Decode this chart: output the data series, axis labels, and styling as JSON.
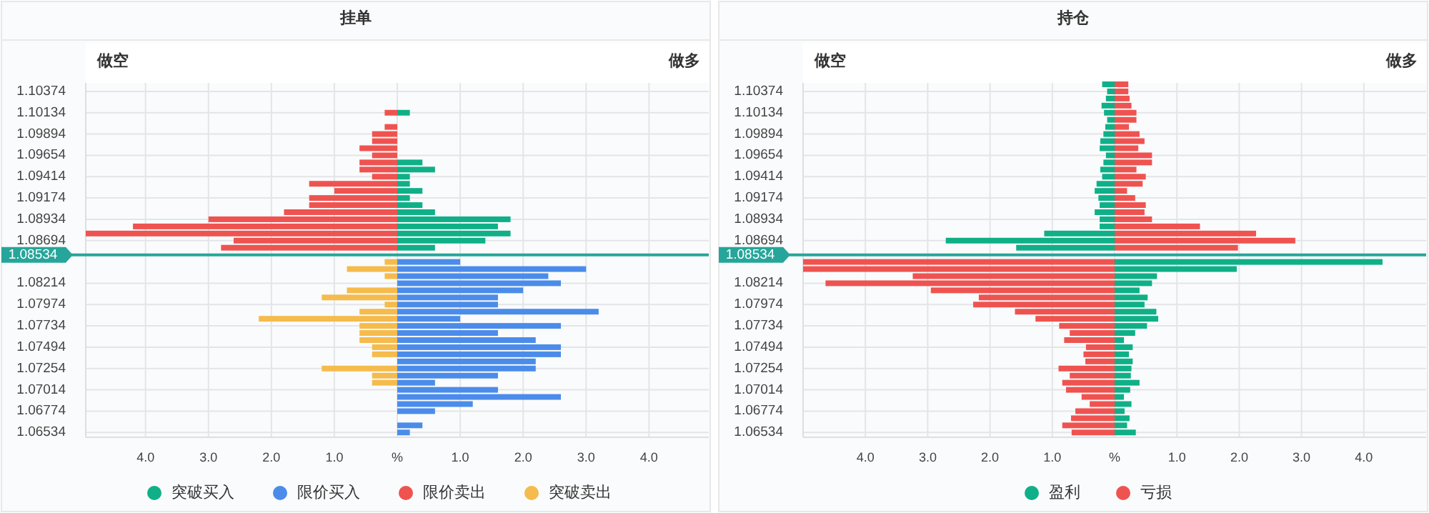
{
  "chart_data": [
    {
      "type": "bar",
      "orientation": "horizontal",
      "stacked": true,
      "title": "挂单",
      "annotations": [
        "做空",
        "做多"
      ],
      "x": [
        1.10134,
        1.10054,
        1.09974,
        1.09894,
        1.09814,
        1.09734,
        1.09654,
        1.09574,
        1.09494,
        1.09414,
        1.09334,
        1.09254,
        1.09174,
        1.09094,
        1.09014,
        1.08934,
        1.08854,
        1.08774,
        1.08694,
        1.08614,
        1.08454,
        1.08374,
        1.08294,
        1.08214,
        1.08134,
        1.08054,
        1.07974,
        1.07894,
        1.07814,
        1.07734,
        1.07654,
        1.07574,
        1.07494,
        1.07414,
        1.07334,
        1.07254,
        1.07174,
        1.07094,
        1.07014,
        1.06934,
        1.06854,
        1.06774,
        1.06614,
        1.06534
      ],
      "series": [
        {
          "name": "突破买入",
          "color": "#0fb087",
          "values": [
            0.2,
            null,
            null,
            null,
            null,
            null,
            null,
            0.4,
            0.6,
            0.2,
            0.2,
            0.4,
            0.2,
            0.4,
            0.6,
            1.8,
            1.6,
            1.8,
            1.4,
            0.6,
            null,
            null,
            null,
            null,
            null,
            null,
            null,
            null,
            null,
            null,
            null,
            null,
            null,
            null,
            null,
            null,
            null,
            null,
            null,
            null,
            null,
            null,
            null,
            null
          ]
        },
        {
          "name": "限价买入",
          "color": "#4b8cea",
          "values": [
            null,
            null,
            null,
            null,
            null,
            null,
            null,
            null,
            null,
            null,
            null,
            null,
            null,
            null,
            null,
            null,
            null,
            null,
            null,
            null,
            1.0,
            3.0,
            2.4,
            2.6,
            2.0,
            1.6,
            1.6,
            3.2,
            1.0,
            2.6,
            1.6,
            2.2,
            2.6,
            2.6,
            2.2,
            2.2,
            1.6,
            0.6,
            1.6,
            2.6,
            1.2,
            0.6,
            0.4,
            0.2
          ]
        },
        {
          "name": "限价卖出",
          "color": "#ef5350",
          "values": [
            -0.2,
            null,
            -0.2,
            -0.4,
            -0.4,
            -0.6,
            -0.4,
            -0.6,
            -0.6,
            -0.4,
            -1.4,
            -1.0,
            -1.4,
            -1.4,
            -1.8,
            -3.0,
            -4.2,
            -4.95,
            -2.6,
            -2.8,
            null,
            null,
            null,
            null,
            null,
            null,
            null,
            null,
            null,
            null,
            null,
            null,
            null,
            null,
            null,
            null,
            null,
            null,
            null,
            null,
            null,
            null,
            null,
            null
          ]
        },
        {
          "name": "突破卖出",
          "color": "#f5bb4c",
          "values": [
            null,
            null,
            null,
            null,
            null,
            null,
            null,
            null,
            null,
            null,
            null,
            null,
            null,
            null,
            null,
            null,
            null,
            null,
            null,
            null,
            -0.2,
            -0.8,
            -0.2,
            null,
            -0.8,
            -1.2,
            -0.2,
            -0.6,
            -2.2,
            -0.6,
            -0.6,
            -0.6,
            -0.4,
            -0.4,
            null,
            -1.2,
            -0.4,
            -0.4,
            null,
            null,
            null,
            null,
            null,
            null
          ]
        }
      ],
      "xlim": [
        -4.95,
        4.95
      ],
      "xticks": [
        {
          "value": -4,
          "label": "4.0"
        },
        {
          "value": -3,
          "label": "3.0"
        },
        {
          "value": -2,
          "label": "2.0"
        },
        {
          "value": -1,
          "label": "1.0"
        },
        {
          "value": 0,
          "label": "%"
        },
        {
          "value": 1,
          "label": "1.0"
        },
        {
          "value": 2,
          "label": "2.0"
        },
        {
          "value": 3,
          "label": "3.0"
        },
        {
          "value": 4,
          "label": "4.0"
        }
      ],
      "ylim": [
        1.0648,
        1.1047
      ],
      "yticks": [
        1.10374,
        1.10134,
        1.09894,
        1.09654,
        1.09414,
        1.09174,
        1.08934,
        1.08694,
        1.08214,
        1.07974,
        1.07734,
        1.07494,
        1.07254,
        1.07014,
        1.06774,
        1.06534
      ],
      "ref_lines": [
        {
          "axis": "y",
          "value": 1.08534,
          "label": "1.08534",
          "color": "#26a69a"
        }
      ],
      "grid": true,
      "legend": "bottom"
    },
    {
      "type": "bar",
      "orientation": "horizontal",
      "stacked": true,
      "title": "持仓",
      "annotations": [
        "做空",
        "做多"
      ],
      "x": [
        1.10454,
        1.10374,
        1.10294,
        1.10214,
        1.10134,
        1.10054,
        1.09974,
        1.09894,
        1.09814,
        1.09734,
        1.09654,
        1.09574,
        1.09494,
        1.09414,
        1.09334,
        1.09254,
        1.09174,
        1.09094,
        1.09014,
        1.08934,
        1.08854,
        1.08774,
        1.08694,
        1.08614,
        1.08454,
        1.08374,
        1.08294,
        1.08214,
        1.08134,
        1.08054,
        1.07974,
        1.07894,
        1.07814,
        1.07734,
        1.07654,
        1.07574,
        1.07494,
        1.07414,
        1.07334,
        1.07254,
        1.07174,
        1.07094,
        1.07014,
        1.06934,
        1.06854,
        1.06774,
        1.06694,
        1.06614,
        1.06534
      ],
      "series": [
        {
          "name": "盈利",
          "color": "#0fb087",
          "values": [
            -0.2,
            -0.12,
            -0.14,
            -0.21,
            -0.17,
            -0.12,
            -0.15,
            -0.18,
            -0.23,
            -0.24,
            -0.14,
            -0.18,
            -0.23,
            -0.2,
            -0.29,
            -0.32,
            -0.26,
            -0.24,
            -0.32,
            -0.24,
            -0.24,
            -1.13,
            -2.71,
            -1.58,
            4.3,
            1.96,
            0.68,
            0.6,
            0.4,
            0.53,
            0.48,
            0.67,
            0.7,
            0.52,
            0.33,
            0.15,
            0.29,
            0.23,
            0.29,
            0.27,
            0.26,
            0.4,
            0.25,
            0.15,
            0.27,
            0.16,
            0.24,
            0.2,
            0.34
          ]
        },
        {
          "name": "亏损",
          "color": "#ef5350",
          "values": [
            0.22,
            0.22,
            0.24,
            0.27,
            0.35,
            0.35,
            0.23,
            0.4,
            0.48,
            0.38,
            0.6,
            0.6,
            0.35,
            0.5,
            0.45,
            0.2,
            0.33,
            0.5,
            0.48,
            0.6,
            1.37,
            2.27,
            2.9,
            1.98,
            -5,
            -5,
            -3.24,
            -4.64,
            -2.95,
            -2.18,
            -2.27,
            -1.6,
            -1.27,
            -0.89,
            -0.72,
            -0.81,
            -0.46,
            -0.5,
            -0.47,
            -0.9,
            -0.72,
            -0.84,
            -0.78,
            -0.53,
            -0.4,
            -0.63,
            -0.7,
            -0.84,
            -0.69
          ]
        }
      ],
      "xlim": [
        -5,
        5
      ],
      "xticks": [
        {
          "value": -4,
          "label": "4.0"
        },
        {
          "value": -3,
          "label": "3.0"
        },
        {
          "value": -2,
          "label": "2.0"
        },
        {
          "value": -1,
          "label": "1.0"
        },
        {
          "value": 0,
          "label": "%"
        },
        {
          "value": 1,
          "label": "1.0"
        },
        {
          "value": 2,
          "label": "2.0"
        },
        {
          "value": 3,
          "label": "3.0"
        },
        {
          "value": 4,
          "label": "4.0"
        }
      ],
      "ylim": [
        1.0648,
        1.1047
      ],
      "yticks": [
        1.10374,
        1.10134,
        1.09894,
        1.09654,
        1.09414,
        1.09174,
        1.08934,
        1.08694,
        1.08214,
        1.07974,
        1.07734,
        1.07494,
        1.07254,
        1.07014,
        1.06774,
        1.06534
      ],
      "ref_lines": [
        {
          "axis": "y",
          "value": 1.08534,
          "label": "1.08534",
          "color": "#26a69a"
        }
      ],
      "grid": true,
      "legend": "bottom"
    }
  ]
}
